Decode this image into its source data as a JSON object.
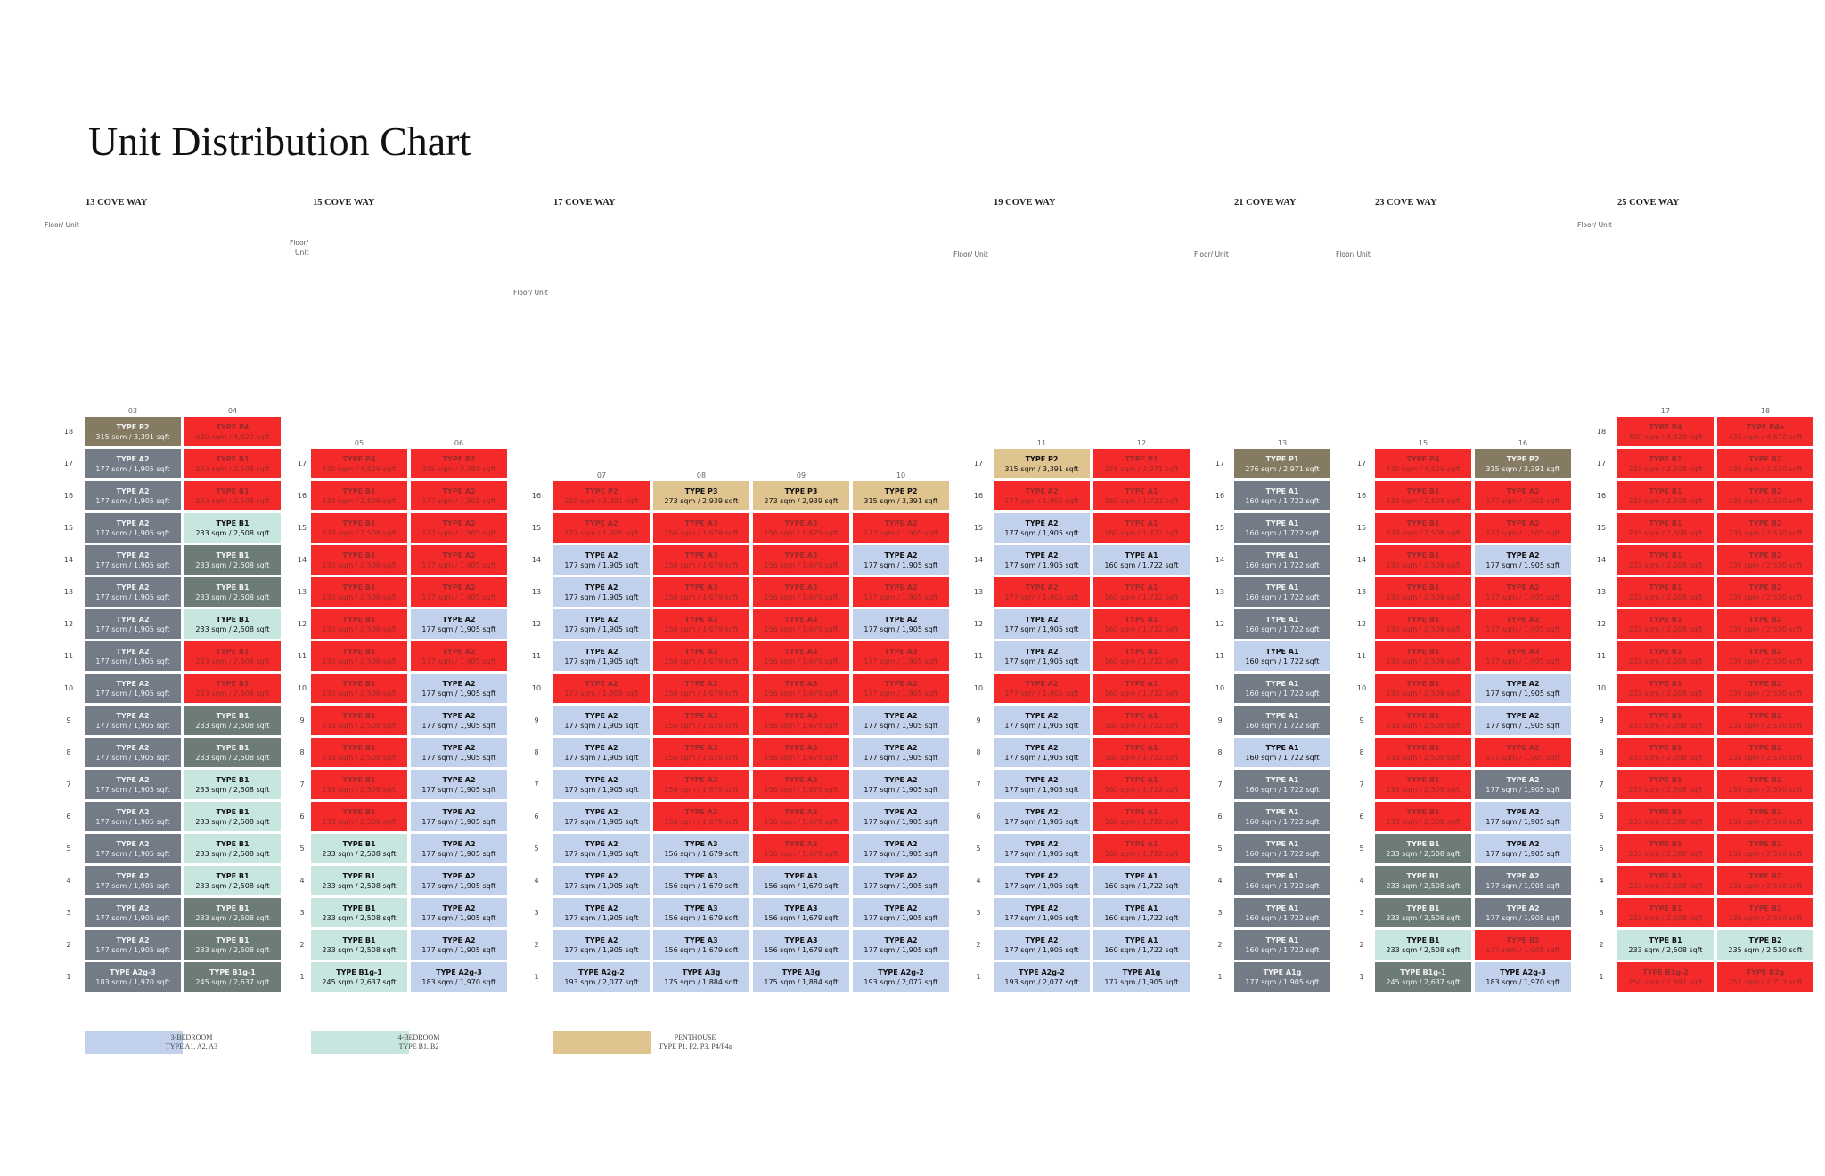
{
  "title": "Unit Distribution Chart",
  "colors": {
    "3br": "#c1d0eb",
    "4br": "#c6e6df",
    "ph": "#e0c490",
    "sold": "#f42a2a",
    "grey": "#737b86",
    "greygreen": "#6e7c76",
    "olive": "#857b63"
  },
  "chart_data": {
    "type": "table",
    "labels": {
      "floor_unit": "Floor/ Unit",
      "floor_unit_inline": "Floor/ Unit",
      "floor_unit_top": "Floor/",
      "floor_unit_bottom": "Unit"
    },
    "buildings": [
      {
        "name": "13 COVE WAY",
        "units": [
          "03",
          "04"
        ],
        "top_floor": 18,
        "cells": {
          "03": [
            "A2g-3|183 sqm / 1,970 sqft|grey",
            "A2|177 sqm / 1,905 sqft|grey",
            "A2|177 sqm / 1,905 sqft|grey",
            "A2|177 sqm / 1,905 sqft|grey",
            "A2|177 sqm / 1,905 sqft|grey",
            "A2|177 sqm / 1,905 sqft|grey",
            "A2|177 sqm / 1,905 sqft|grey",
            "A2|177 sqm / 1,905 sqft|grey",
            "A2|177 sqm / 1,905 sqft|grey",
            "A2|177 sqm / 1,905 sqft|grey",
            "A2|177 sqm / 1,905 sqft|grey",
            "A2|177 sqm / 1,905 sqft|grey",
            "A2|177 sqm / 1,905 sqft|grey",
            "A2|177 sqm / 1,905 sqft|grey",
            "A2|177 sqm / 1,905 sqft|grey",
            "A2|177 sqm / 1,905 sqft|grey",
            "A2|177 sqm / 1,905 sqft|grey",
            "P2|315 sqm / 3,391 sqft|olive"
          ],
          "04": [
            "B1g-1|245 sqm / 2,637 sqft|greygreen",
            "B1|233 sqm / 2,508 sqft|greygreen",
            "B1|233 sqm / 2,508 sqft|greygreen",
            "B1|233 sqm / 2,508 sqft|4br",
            "B1|233 sqm / 2,508 sqft|4br",
            "B1|233 sqm / 2,508 sqft|4br",
            "B1|233 sqm / 2,508 sqft|4br",
            "B1|233 sqm / 2,508 sqft|greygreen",
            "B1|233 sqm / 2,508 sqft|greygreen",
            "B1|233 sqm / 2,508 sqft|sold",
            "B1|233 sqm / 2,508 sqft|sold",
            "B1|233 sqm / 2,508 sqft|4br",
            "B1|233 sqm / 2,508 sqft|greygreen",
            "B1|233 sqm / 2,508 sqft|greygreen",
            "B1|233 sqm / 2,508 sqft|4br",
            "B1|233 sqm / 2,508 sqft|sold",
            "B1|233 sqm / 2,508 sqft|sold",
            "P4|430 sqm / 4,629 sqft|sold"
          ]
        }
      },
      {
        "name": "15 COVE WAY",
        "units": [
          "05",
          "06"
        ],
        "top_floor": 17,
        "cells": {
          "05": [
            "B1g-1|245 sqm / 2,637 sqft|4br",
            "B1|233 sqm / 2,508 sqft|4br",
            "B1|233 sqm / 2,508 sqft|4br",
            "B1|233 sqm / 2,508 sqft|4br",
            "B1|233 sqm / 2,508 sqft|4br",
            "B1|233 sqm / 2,508 sqft|sold",
            "B1|233 sqm / 2,508 sqft|sold",
            "B1|233 sqm / 2,508 sqft|sold",
            "B1|233 sqm / 2,508 sqft|sold",
            "B1|233 sqm / 2,508 sqft|sold",
            "B1|233 sqm / 2,508 sqft|sold",
            "B1|233 sqm / 2,508 sqft|sold",
            "B1|233 sqm / 2,508 sqft|sold",
            "B1|233 sqm / 2,508 sqft|sold",
            "B1|233 sqm / 2,508 sqft|sold",
            "B1|233 sqm / 2,508 sqft|sold",
            "P4|430 sqm / 4,629 sqft|sold"
          ],
          "06": [
            "A2g-3|183 sqm / 1,970 sqft|3br",
            "A2|177 sqm / 1,905 sqft|3br",
            "A2|177 sqm / 1,905 sqft|3br",
            "A2|177 sqm / 1,905 sqft|3br",
            "A2|177 sqm / 1,905 sqft|3br",
            "A2|177 sqm / 1,905 sqft|3br",
            "A2|177 sqm / 1,905 sqft|3br",
            "A2|177 sqm / 1,905 sqft|3br",
            "A2|177 sqm / 1,905 sqft|3br",
            "A2|177 sqm / 1,905 sqft|3br",
            "A2|177 sqm / 1,905 sqft|sold",
            "A2|177 sqm / 1,905 sqft|3br",
            "A2|177 sqm / 1,905 sqft|sold",
            "A2|177 sqm / 1,905 sqft|sold",
            "A2|177 sqm / 1,905 sqft|sold",
            "A2|177 sqm / 1,905 sqft|sold",
            "P2|315 sqm / 3,391 sqft|sold"
          ]
        }
      },
      {
        "name": "17 COVE WAY",
        "units": [
          "07",
          "08",
          "09",
          "10"
        ],
        "top_floor": 16,
        "cells": {
          "07": [
            "A2g-2|193 sqm / 2,077 sqft|3br",
            "A2|177 sqm / 1,905 sqft|3br",
            "A2|177 sqm / 1,905 sqft|3br",
            "A2|177 sqm / 1,905 sqft|3br",
            "A2|177 sqm / 1,905 sqft|3br",
            "A2|177 sqm / 1,905 sqft|3br",
            "A2|177 sqm / 1,905 sqft|3br",
            "A2|177 sqm / 1,905 sqft|3br",
            "A2|177 sqm / 1,905 sqft|3br",
            "A2|177 sqm / 1,905 sqft|sold",
            "A2|177 sqm / 1,905 sqft|3br",
            "A2|177 sqm / 1,905 sqft|3br",
            "A2|177 sqm / 1,905 sqft|3br",
            "A2|177 sqm / 1,905 sqft|3br",
            "A2|177 sqm / 1,905 sqft|sold",
            "P2|315 sqm / 3,391 sqft|sold"
          ],
          "08": [
            "A3g|175 sqm / 1,884 sqft|3br",
            "A3|156 sqm / 1,679 sqft|3br",
            "A3|156 sqm / 1,679 sqft|3br",
            "A3|156 sqm / 1,679 sqft|3br",
            "A3|156 sqm / 1,679 sqft|3br",
            "A3|156 sqm / 1,679 sqft|sold",
            "A3|156 sqm / 1,679 sqft|sold",
            "A3|156 sqm / 1,679 sqft|sold",
            "A3|156 sqm / 1,679 sqft|sold",
            "A3|156 sqm / 1,679 sqft|sold",
            "A3|156 sqm / 1,679 sqft|sold",
            "A3|156 sqm / 1,679 sqft|sold",
            "A3|156 sqm / 1,679 sqft|sold",
            "A3|156 sqm / 1,679 sqft|sold",
            "A3|156 sqm / 1,679 sqft|sold",
            "P3|273 sqm / 2,939 sqft|ph"
          ],
          "09": [
            "A3g|175 sqm / 1,884 sqft|3br",
            "A3|156 sqm / 1,679 sqft|3br",
            "A3|156 sqm / 1,679 sqft|3br",
            "A3|156 sqm / 1,679 sqft|3br",
            "A3|156 sqm / 1,679 sqft|sold",
            "A3|156 sqm / 1,679 sqft|sold",
            "A3|156 sqm / 1,679 sqft|sold",
            "A3|156 sqm / 1,679 sqft|sold",
            "A3|156 sqm / 1,679 sqft|sold",
            "A3|156 sqm / 1,679 sqft|sold",
            "A3|156 sqm / 1,679 sqft|sold",
            "A3|156 sqm / 1,679 sqft|sold",
            "A3|156 sqm / 1,679 sqft|sold",
            "A3|156 sqm / 1,679 sqft|sold",
            "A3|156 sqm / 1,679 sqft|sold",
            "P3|273 sqm / 2,939 sqft|ph"
          ],
          "10": [
            "A2g-2|193 sqm / 2,077 sqft|3br",
            "A2|177 sqm / 1,905 sqft|3br",
            "A2|177 sqm / 1,905 sqft|3br",
            "A2|177 sqm / 1,905 sqft|3br",
            "A2|177 sqm / 1,905 sqft|3br",
            "A2|177 sqm / 1,905 sqft|3br",
            "A2|177 sqm / 1,905 sqft|3br",
            "A2|177 sqm / 1,905 sqft|3br",
            "A2|177 sqm / 1,905 sqft|3br",
            "A2|177 sqm / 1,905 sqft|sold",
            "A3|177 sqm / 1,905 sqft|sold",
            "A2|177 sqm / 1,905 sqft|3br",
            "A2|177 sqm / 1,905 sqft|sold",
            "A2|177 sqm / 1,905 sqft|3br",
            "A2|177 sqm / 1,905 sqft|sold",
            "P2|315 sqm / 3,391 sqft|ph"
          ]
        }
      },
      {
        "name": "19 COVE WAY",
        "units": [
          "11",
          "12"
        ],
        "top_floor": 17,
        "cells": {
          "11": [
            "A2g-2|193 sqm / 2,077 sqft|3br",
            "A2|177 sqm / 1,905 sqft|3br",
            "A2|177 sqm / 1,905 sqft|3br",
            "A2|177 sqm / 1,905 sqft|3br",
            "A2|177 sqm / 1,905 sqft|3br",
            "A2|177 sqm / 1,905 sqft|3br",
            "A2|177 sqm / 1,905 sqft|3br",
            "A2|177 sqm / 1,905 sqft|3br",
            "A2|177 sqm / 1,905 sqft|3br",
            "A2|177 sqm / 1,905 sqft|sold",
            "A2|177 sqm / 1,905 sqft|3br",
            "A2|177 sqm / 1,905 sqft|3br",
            "A2|177 sqm / 1,905 sqft|sold",
            "A2|177 sqm / 1,905 sqft|3br",
            "A2|177 sqm / 1,905 sqft|3br",
            "A2|177 sqm / 1,905 sqft|sold",
            "P2|315 sqm / 3,391 sqft|ph"
          ],
          "12": [
            "A1g|177 sqm / 1,905 sqft|3br",
            "A1|160 sqm / 1,722 sqft|3br",
            "A1|160 sqm / 1,722 sqft|3br",
            "A1|160 sqm / 1,722 sqft|3br",
            "A1|160 sqm / 1,722 sqft|sold",
            "A1|160 sqm / 1,722 sqft|sold",
            "A1|160 sqm / 1,722 sqft|sold",
            "A1|160 sqm / 1,722 sqft|sold",
            "A1|160 sqm / 1,722 sqft|sold",
            "A1|160 sqm / 1,722 sqft|sold",
            "A1|160 sqm / 1,722 sqft|sold",
            "A1|160 sqm / 1,722 sqft|sold",
            "A1|160 sqm / 1,722 sqft|sold",
            "A1|160 sqm / 1,722 sqft|3br",
            "A1|160 sqm / 1,722 sqft|sold",
            "A1|160 sqm / 1,722 sqft|sold",
            "P1|276 sqm / 2,971 sqft|sold"
          ]
        }
      },
      {
        "name": "21 COVE WAY",
        "units": [
          "13"
        ],
        "top_floor": 17,
        "cells": {
          "13": [
            "A1g|177 sqm / 1,905 sqft|grey",
            "A1|160 sqm / 1,722 sqft|grey",
            "A1|160 sqm / 1,722 sqft|grey",
            "A1|160 sqm / 1,722 sqft|grey",
            "A1|160 sqm / 1,722 sqft|grey",
            "A1|160 sqm / 1,722 sqft|grey",
            "A1|160 sqm / 1,722 sqft|grey",
            "A1|160 sqm / 1,722 sqft|3br",
            "A1|160 sqm / 1,722 sqft|grey",
            "A1|160 sqm / 1,722 sqft|grey",
            "A1|160 sqm / 1,722 sqft|3br",
            "A1|160 sqm / 1,722 sqft|grey",
            "A1|160 sqm / 1,722 sqft|grey",
            "A1|160 sqm / 1,722 sqft|grey",
            "A1|160 sqm / 1,722 sqft|grey",
            "A1|160 sqm / 1,722 sqft|grey",
            "P1|276 sqm / 2,971 sqft|olive"
          ]
        }
      },
      {
        "name": "23 COVE WAY",
        "units": [
          "15",
          "16"
        ],
        "top_floor": 17,
        "cells": {
          "15": [
            "B1g-1|245 sqm / 2,637 sqft|greygreen",
            "B1|233 sqm / 2,508 sqft|4br",
            "B1|233 sqm / 2,508 sqft|greygreen",
            "B1|233 sqm / 2,508 sqft|greygreen",
            "B1|233 sqm / 2,508 sqft|greygreen",
            "B1|233 sqm / 2,508 sqft|sold",
            "B1|233 sqm / 2,508 sqft|sold",
            "B1|233 sqm / 2,508 sqft|sold",
            "B1|233 sqm / 2,508 sqft|sold",
            "B1|233 sqm / 2,508 sqft|sold",
            "B1|233 sqm / 2,508 sqft|sold",
            "B1|233 sqm / 2,508 sqft|sold",
            "B1|233 sqm / 2,508 sqft|sold",
            "B1|233 sqm / 2,508 sqft|sold",
            "B1|233 sqm / 2,508 sqft|sold",
            "B1|233 sqm / 2,508 sqft|sold",
            "P4|430 sqm / 4,629 sqft|sold"
          ],
          "16": [
            "A2g-3|183 sqm / 1,970 sqft|3br",
            "B2|177 sqm / 1,905 sqft|sold",
            "A2|177 sqm / 1,905 sqft|grey",
            "A2|177 sqm / 1,905 sqft|grey",
            "A2|177 sqm / 1,905 sqft|3br",
            "A2|177 sqm / 1,905 sqft|3br",
            "A2|177 sqm / 1,905 sqft|grey",
            "A2|177 sqm / 1,905 sqft|sold",
            "A2|177 sqm / 1,905 sqft|3br",
            "A2|177 sqm / 1,905 sqft|3br",
            "A3|177 sqm / 1,905 sqft|sold",
            "A2|177 sqm / 1,905 sqft|sold",
            "A2|177 sqm / 1,905 sqft|sold",
            "A2|177 sqm / 1,905 sqft|3br",
            "A2|177 sqm / 1,905 sqft|sold",
            "A2|177 sqm / 1,905 sqft|sold",
            "P2|315 sqm / 3,391 sqft|olive"
          ]
        }
      },
      {
        "name": "25 COVE WAY",
        "units": [
          "17",
          "18"
        ],
        "top_floor": 18,
        "cells": {
          "17": [
            "B1g-2|250 sqm / 2,691 sqft|sold",
            "B1|233 sqm / 2,508 sqft|4br",
            "B1|233 sqm / 2,508 sqft|sold",
            "B1|233 sqm / 2,508 sqft|sold",
            "B1|233 sqm / 2,508 sqft|sold",
            "B1|233 sqm / 2,508 sqft|sold",
            "B1|233 sqm / 2,508 sqft|sold",
            "B1|233 sqm / 2,508 sqft|sold",
            "B1|233 sqm / 2,508 sqft|sold",
            "B1|233 sqm / 2,508 sqft|sold",
            "B1|233 sqm / 2,508 sqft|sold",
            "B1|233 sqm / 2,508 sqft|sold",
            "B1|233 sqm / 2,508 sqft|sold",
            "B1|233 sqm / 2,508 sqft|sold",
            "B1|233 sqm / 2,508 sqft|sold",
            "B1|233 sqm / 2,508 sqft|sold",
            "B1|233 sqm / 2,508 sqft|sold",
            "P4|430 sqm / 4,629 sqft|sold"
          ],
          "18": [
            "B2g|252 sqm / 2,713 sqft|sold",
            "B2|235 sqm / 2,530 sqft|4br",
            "B2|235 sqm / 2,530 sqft|sold",
            "B2|235 sqm / 2,530 sqft|sold",
            "B2|235 sqm / 2,530 sqft|sold",
            "B2|235 sqm / 2,530 sqft|sold",
            "B2|235 sqm / 2,530 sqft|sold",
            "B2|235 sqm / 2,530 sqft|sold",
            "B2|235 sqm / 2,530 sqft|sold",
            "B2|235 sqm / 2,530 sqft|sold",
            "B2|235 sqm / 2,530 sqft|sold",
            "B2|235 sqm / 2,530 sqft|sold",
            "B2|235 sqm / 2,530 sqft|sold",
            "B2|235 sqm / 2,530 sqft|sold",
            "B2|235 sqm / 2,530 sqft|sold",
            "B2|235 sqm / 2,530 sqft|sold",
            "B2|235 sqm / 2,530 sqft|sold",
            "P4a|434 sqm / 4,672 sqft|sold"
          ]
        }
      }
    ],
    "legend": [
      {
        "label": "3-BEDROOM",
        "sub": "TYPE A1, A2, A3",
        "color": "3br"
      },
      {
        "label": "4-BEDROOM",
        "sub": "TYPE B1, B2",
        "color": "4br"
      },
      {
        "label": "PENTHOUSE",
        "sub": "TYPE P1, P2, P3, P4/P4a",
        "color": "ph"
      }
    ]
  }
}
